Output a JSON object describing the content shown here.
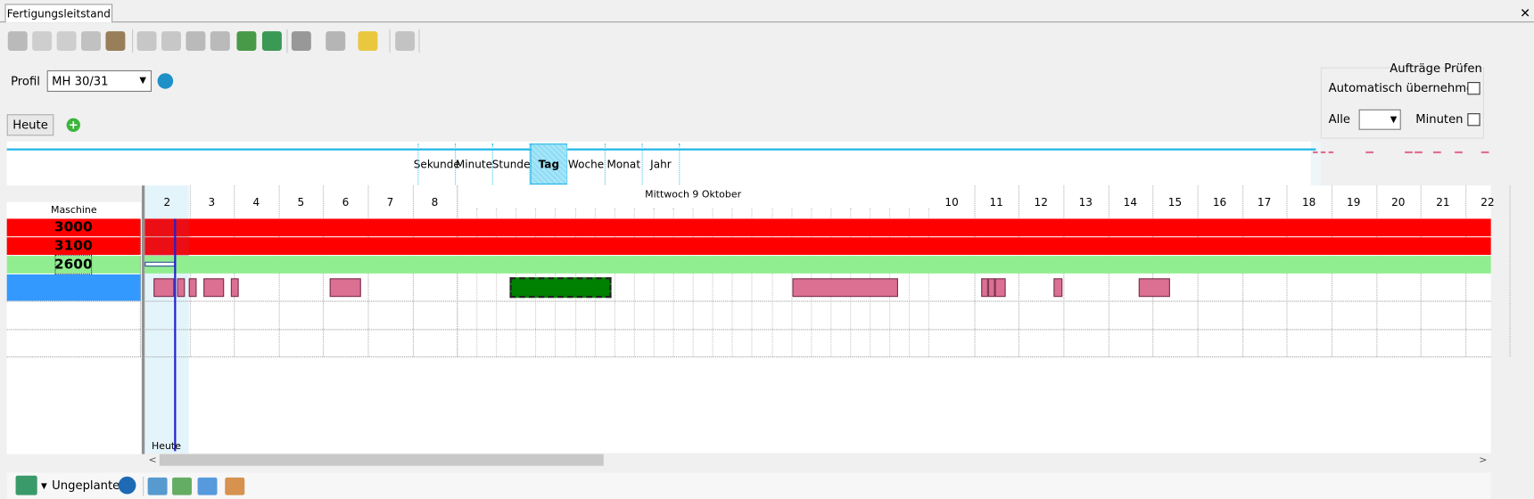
{
  "tab": {
    "title": "Fertigungsleitstand"
  },
  "profile": {
    "label": "Profil",
    "value": "MH 30/31"
  },
  "today_button": "Heute",
  "check_panel": {
    "title": "Aufträge Prüfen",
    "auto_label": "Automatisch übernehmen",
    "all_label": "Alle",
    "minutes_label": "Minuten"
  },
  "zoom": {
    "levels": [
      "Sekunde",
      "Minute",
      "Stunde",
      "Tag",
      "Woche",
      "Monat",
      "Jahr"
    ],
    "selected": "Tag"
  },
  "timeline": {
    "machine_header": "Maschine",
    "date_header": "Mittwoch 9 Oktober",
    "days": [
      "2",
      "3",
      "4",
      "5",
      "6",
      "7",
      "8",
      "10",
      "11",
      "12",
      "13",
      "14",
      "15",
      "16",
      "17",
      "18",
      "19",
      "20",
      "21",
      "22"
    ],
    "today_marker": "Heute"
  },
  "machines": [
    {
      "name": "3000",
      "color": "#ff0000"
    },
    {
      "name": "3100",
      "color": "#ff0000"
    },
    {
      "name": "2600",
      "color": "#90ee90"
    }
  ],
  "bottom_toolbar": {
    "unplanned_label": "Ungeplante"
  }
}
